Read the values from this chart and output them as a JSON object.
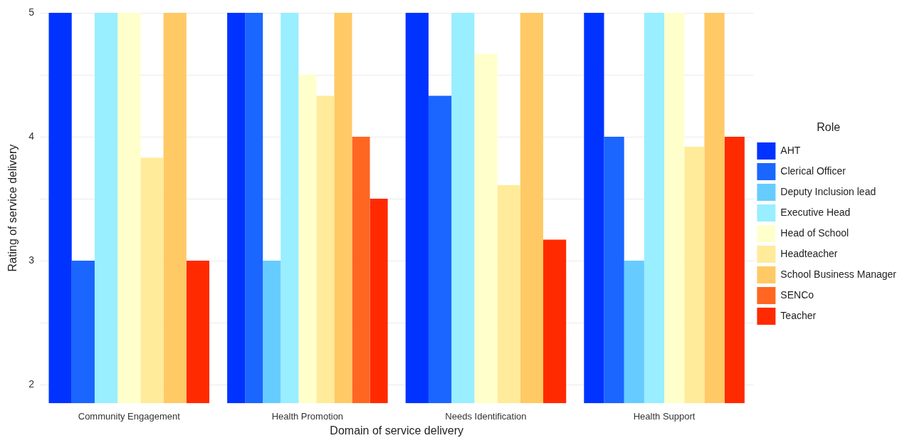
{
  "chart_data": {
    "type": "bar",
    "xlabel": "Domain of service delivery",
    "ylabel": "Rating of service delivery",
    "legend_title": "Role",
    "legend": "right",
    "grid": "y",
    "categories": [
      "Community Engagement",
      "Health Promotion",
      "Needs Identification",
      "Health Support"
    ],
    "ylim": [
      1.85,
      5
    ],
    "yticks": [
      2,
      {
        "value": 2.5,
        "label": null
      },
      3,
      {
        "value": 3.5,
        "label": null
      },
      4,
      {
        "value": 4.5,
        "label": null
      },
      5
    ],
    "series": [
      {
        "name": "AHT",
        "color": "#0033ff",
        "values": [
          5,
          5,
          5,
          5
        ]
      },
      {
        "name": "Clerical Officer",
        "color": "#1a66ff",
        "values": [
          3,
          5,
          4.33,
          4
        ]
      },
      {
        "name": "Deputy Inclusion lead",
        "color": "#66ccff",
        "values": [
          null,
          3,
          null,
          3
        ]
      },
      {
        "name": "Executive Head",
        "color": "#99eeff",
        "values": [
          5,
          5,
          5,
          5
        ]
      },
      {
        "name": "Head of School",
        "color": "#ffffcc",
        "values": [
          5,
          4.5,
          4.67,
          5
        ]
      },
      {
        "name": "Headteacher",
        "color": "#ffeb99",
        "values": [
          3.83,
          4.33,
          3.61,
          3.92
        ]
      },
      {
        "name": "School Business Manager",
        "color": "#ffc966",
        "values": [
          5,
          5,
          5,
          5
        ]
      },
      {
        "name": "SENCo",
        "color": "#ff6622",
        "values": [
          null,
          4,
          null,
          null
        ]
      },
      {
        "name": "Teacher",
        "color": "#ff2a00",
        "values": [
          3,
          3.5,
          3.17,
          4
        ]
      }
    ]
  }
}
